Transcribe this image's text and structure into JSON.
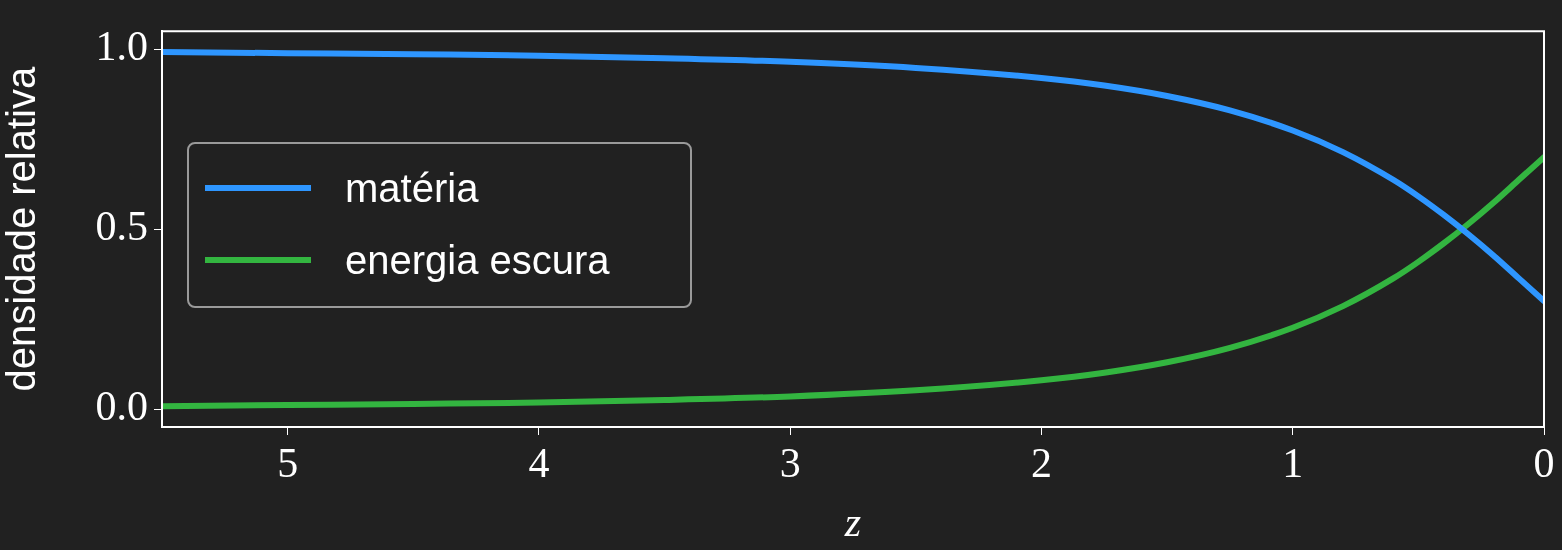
{
  "chart_data": {
    "type": "line",
    "xlabel": "z",
    "ylabel": "densidade relativa",
    "x": [
      5.5,
      5,
      4.5,
      4,
      3.5,
      3,
      2.5,
      2,
      1.75,
      1.5,
      1.25,
      1,
      0.8,
      0.6,
      0.5,
      0.4,
      0.3,
      0.2,
      0.1,
      0
    ],
    "series": [
      {
        "name": "matéria",
        "color": "#2e96ff",
        "values": [
          0.992,
          0.989,
          0.986,
          0.982,
          0.975,
          0.965,
          0.948,
          0.92,
          0.899,
          0.87,
          0.83,
          0.774,
          0.714,
          0.637,
          0.591,
          0.54,
          0.485,
          0.426,
          0.363,
          0.3
        ]
      },
      {
        "name": "energia escura",
        "color": "#33b540",
        "values": [
          0.008,
          0.011,
          0.014,
          0.018,
          0.025,
          0.035,
          0.052,
          0.08,
          0.101,
          0.13,
          0.17,
          0.226,
          0.286,
          0.363,
          0.409,
          0.46,
          0.515,
          0.574,
          0.637,
          0.7
        ]
      }
    ],
    "xlim": [
      5.5,
      0
    ],
    "xticks": [
      5,
      4,
      3,
      2,
      1,
      0
    ],
    "ylim": [
      -0.05,
      1.05
    ],
    "yticks": [
      {
        "value": 0,
        "label": "0.0"
      },
      0.5,
      {
        "value": 1,
        "label": "1.0"
      }
    ],
    "grid": false,
    "legend": "center left",
    "marker": "none",
    "line_style": "solid"
  }
}
